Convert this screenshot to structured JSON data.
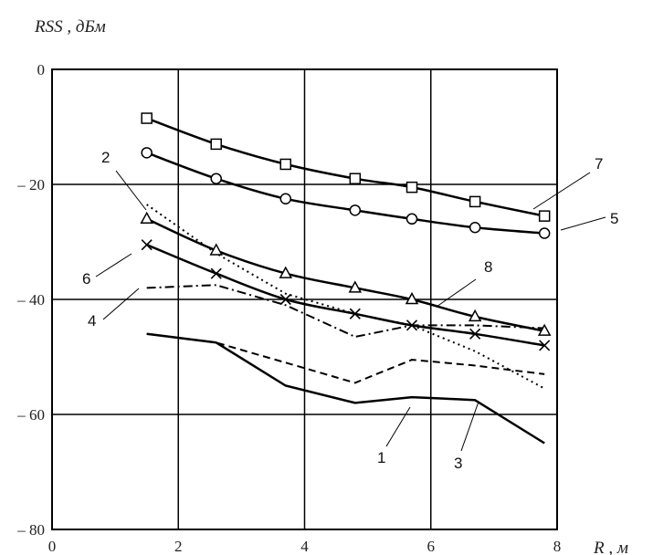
{
  "chart_data": {
    "type": "line",
    "ylabel": "RSS , дБм",
    "xlabel": "R , м",
    "xlim": [
      0,
      8
    ],
    "ylim": [
      -80,
      0
    ],
    "x_ticks": [
      "0",
      "2",
      "4",
      "6",
      "8"
    ],
    "y_ticks": [
      "0",
      "-20",
      "-40",
      "-60",
      "-80"
    ],
    "grid": true,
    "series": [
      {
        "name": "1",
        "style": "solid",
        "marker": "none",
        "color": "#000000",
        "x": [
          1.5,
          2.6,
          3.7,
          4.8,
          5.7,
          6.7,
          7.8
        ],
        "y": [
          -46,
          -47.5,
          -55,
          -58,
          -57,
          -57.5,
          -65
        ]
      },
      {
        "name": "2",
        "style": "dotted",
        "marker": "none",
        "color": "#000000",
        "x": [
          1.5,
          2.6,
          3.7,
          4.8,
          5.7,
          6.7,
          7.8
        ],
        "y": [
          -23.5,
          -32,
          -39,
          -42.5,
          -44.5,
          -49,
          -55.5
        ]
      },
      {
        "name": "3",
        "style": "dashed",
        "marker": "none",
        "color": "#000000",
        "x": [
          1.5,
          2.6,
          3.7,
          4.8,
          5.7,
          6.7,
          7.8
        ],
        "y": [
          -46,
          -47.5,
          -51,
          -54.5,
          -50.5,
          -51.5,
          -53
        ]
      },
      {
        "name": "4",
        "style": "dashdot",
        "marker": "none",
        "color": "#000000",
        "x": [
          1.5,
          2.6,
          3.7,
          4.8,
          5.7,
          6.7,
          7.8
        ],
        "y": [
          -38,
          -37.5,
          -41,
          -46.5,
          -44.5,
          -44.5,
          -45
        ]
      },
      {
        "name": "5",
        "style": "solid",
        "marker": "circle",
        "color": "#000000",
        "x": [
          1.5,
          2.6,
          3.7,
          4.8,
          5.7,
          6.7,
          7.8
        ],
        "y": [
          -14.5,
          -19,
          -22.5,
          -24.5,
          -26,
          -27.5,
          -28.5
        ]
      },
      {
        "name": "6",
        "style": "solid",
        "marker": "x",
        "color": "#000000",
        "x": [
          1.5,
          2.6,
          3.7,
          4.8,
          5.7,
          6.7,
          7.8
        ],
        "y": [
          -30.5,
          -35.5,
          -40,
          -42.5,
          -44.5,
          -46,
          -48
        ]
      },
      {
        "name": "7",
        "style": "solid",
        "marker": "square",
        "color": "#000000",
        "x": [
          1.5,
          2.6,
          3.7,
          4.8,
          5.7,
          6.7,
          7.8
        ],
        "y": [
          -8.5,
          -13,
          -16.5,
          -19,
          -20.5,
          -23,
          -25.5
        ]
      },
      {
        "name": "8",
        "style": "solid",
        "marker": "triangle",
        "color": "#000000",
        "x": [
          1.5,
          2.6,
          3.7,
          4.8,
          5.7,
          6.7,
          7.8
        ],
        "y": [
          -26,
          -31.5,
          -35.5,
          -38,
          -40,
          -43,
          -45.5
        ]
      }
    ]
  }
}
